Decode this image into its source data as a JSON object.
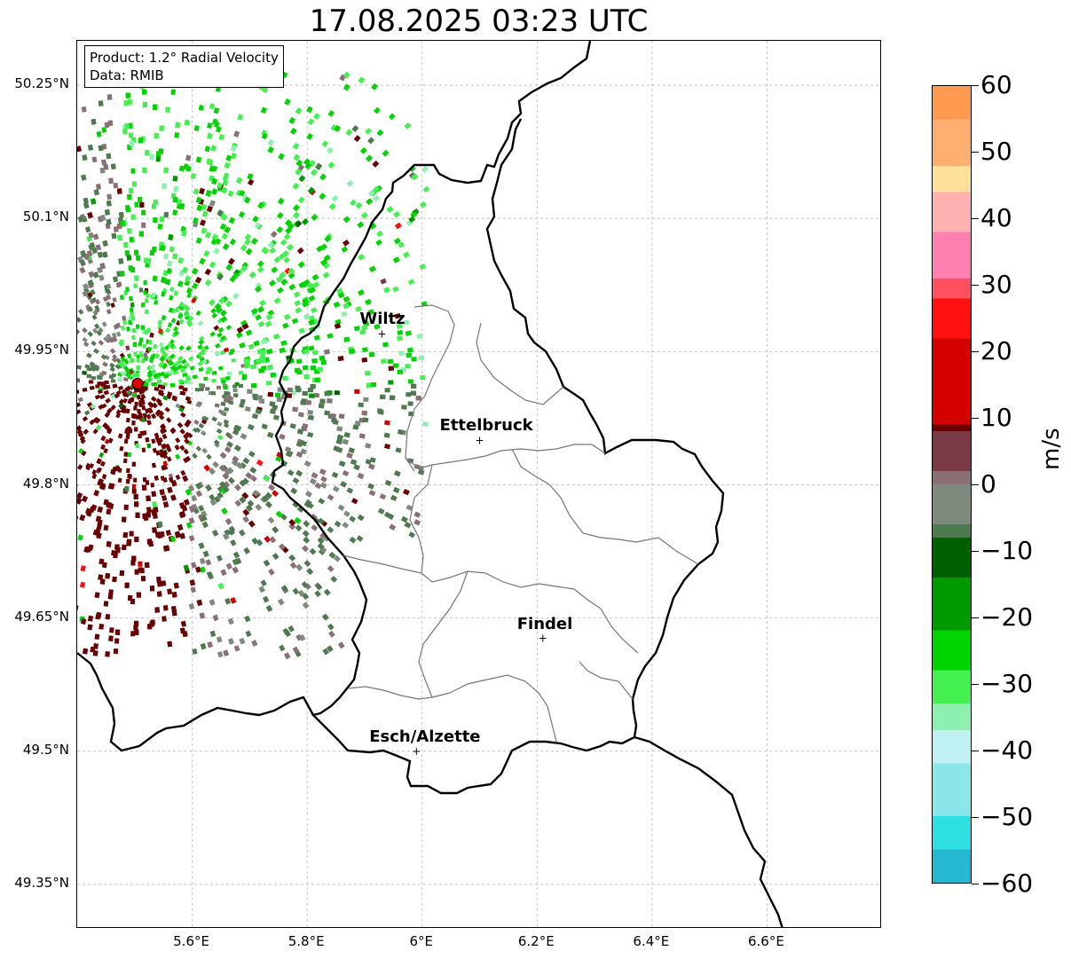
{
  "title": "17.08.2025 03:23 UTC",
  "info": {
    "product": "Product: 1.2° Radial Velocity",
    "data": "Data: RMIB"
  },
  "lat_ticks": [
    {
      "label": "50.25°N",
      "value": 50.25
    },
    {
      "label": "50.1°N",
      "value": 50.1
    },
    {
      "label": "49.95°N",
      "value": 49.95
    },
    {
      "label": "49.8°N",
      "value": 49.8
    },
    {
      "label": "49.65°N",
      "value": 49.65
    },
    {
      "label": "49.5°N",
      "value": 49.5
    },
    {
      "label": "49.35°N",
      "value": 49.35
    }
  ],
  "lon_ticks": [
    {
      "label": "5.6°E",
      "value": 5.6
    },
    {
      "label": "5.8°E",
      "value": 5.8
    },
    {
      "label": "6°E",
      "value": 6.0
    },
    {
      "label": "6.2°E",
      "value": 6.2
    },
    {
      "label": "6.4°E",
      "value": 6.4
    },
    {
      "label": "6.6°E",
      "value": 6.6
    }
  ],
  "extent": {
    "lon_min": 5.4,
    "lon_max": 6.8,
    "lat_min": 49.3,
    "lat_max": 50.3
  },
  "cities": [
    {
      "name": "Wiltz",
      "lon": 5.93,
      "lat": 49.97
    },
    {
      "name": "Ettelbruck",
      "lon": 6.1,
      "lat": 49.85
    },
    {
      "name": "Findel",
      "lon": 6.21,
      "lat": 49.627
    },
    {
      "name": "Esch/Alzette",
      "lon": 5.99,
      "lat": 49.5
    }
  ],
  "radar_site": {
    "lon": 5.505,
    "lat": 49.914
  },
  "colorbar": {
    "label": "m/s",
    "min": -60,
    "max": 60,
    "ticks": [
      {
        "label": "60",
        "value": 60
      },
      {
        "label": "50",
        "value": 50
      },
      {
        "label": "40",
        "value": 40
      },
      {
        "label": "30",
        "value": 30
      },
      {
        "label": "20",
        "value": 20
      },
      {
        "label": "10",
        "value": 10
      },
      {
        "label": "0",
        "value": 0
      },
      {
        "label": "−10",
        "value": -10
      },
      {
        "label": "−20",
        "value": -20
      },
      {
        "label": "−30",
        "value": -30
      },
      {
        "label": "−40",
        "value": -40
      },
      {
        "label": "−50",
        "value": -50
      },
      {
        "label": "−60",
        "value": -60
      }
    ],
    "stops": [
      {
        "value": -60,
        "color": "#1f78c4"
      },
      {
        "value": -55,
        "color": "#25b8d0"
      },
      {
        "value": -50,
        "color": "#2ee0e0"
      },
      {
        "value": -42,
        "color": "#8ae6e8"
      },
      {
        "value": -37,
        "color": "#bff0f2"
      },
      {
        "value": -33,
        "color": "#8ef0b0"
      },
      {
        "value": -28,
        "color": "#44f050"
      },
      {
        "value": -22,
        "color": "#00d400"
      },
      {
        "value": -14,
        "color": "#009a00"
      },
      {
        "value": -8,
        "color": "#005f00"
      },
      {
        "value": -6,
        "color": "#4f7a4f"
      },
      {
        "value": 0,
        "color": "#7d8a7d"
      },
      {
        "value": 2,
        "color": "#8a6f75"
      },
      {
        "value": 8,
        "color": "#7a3a45"
      },
      {
        "value": 9,
        "color": "#6a0000"
      },
      {
        "value": 22,
        "color": "#d40000"
      },
      {
        "value": 28,
        "color": "#ff1010"
      },
      {
        "value": 31,
        "color": "#ff5060"
      },
      {
        "value": 38,
        "color": "#ff80b0"
      },
      {
        "value": 44,
        "color": "#ffb0b0"
      },
      {
        "value": 48,
        "color": "#ffe09a"
      },
      {
        "value": 55,
        "color": "#ffb070"
      },
      {
        "value": 60,
        "color": "#ff9a50"
      }
    ]
  }
}
